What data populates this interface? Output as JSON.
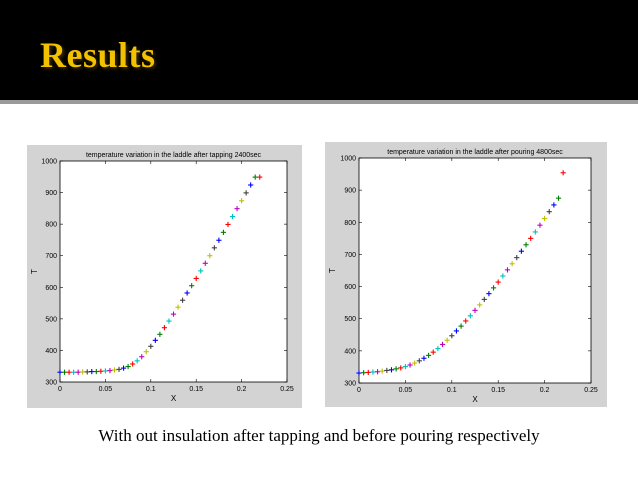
{
  "slide": {
    "title": "Results",
    "caption": "With out insulation after tapping and before pouring respectively"
  },
  "colors": {
    "header_bg": "#000000",
    "title_color": "#f2c200",
    "panel_bg": "#d3d3d3"
  },
  "chart_data": [
    {
      "type": "scatter",
      "title": "temperature variation in the laddle after tapping 2400sec",
      "xlabel": "X",
      "ylabel": "T",
      "xlim": [
        0,
        0.25
      ],
      "ylim": [
        300,
        1000
      ],
      "xticks": [
        "0",
        "0.05",
        "0.1",
        "0.15",
        "0.2",
        "0.25"
      ],
      "yticks": [
        "300",
        "400",
        "500",
        "600",
        "700",
        "800",
        "900",
        "1000"
      ],
      "marker": "+",
      "point_colors": [
        "#0000ff",
        "#008000",
        "#ff0000",
        "#00bfbf",
        "#bf00bf",
        "#bfbf00",
        "#404040"
      ],
      "x": [
        0,
        0.005,
        0.01,
        0.015,
        0.02,
        0.025,
        0.03,
        0.035,
        0.04,
        0.045,
        0.05,
        0.055,
        0.06,
        0.065,
        0.07,
        0.075,
        0.08,
        0.085,
        0.09,
        0.095,
        0.1,
        0.105,
        0.11,
        0.115,
        0.12,
        0.125,
        0.13,
        0.135,
        0.14,
        0.145,
        0.15,
        0.155,
        0.16,
        0.165,
        0.17,
        0.175,
        0.18,
        0.185,
        0.19,
        0.195,
        0.2,
        0.205,
        0.21,
        0.215,
        0.22
      ],
      "y": [
        331,
        331,
        331,
        331,
        331,
        332,
        332,
        333,
        333,
        334,
        335,
        336,
        338,
        340,
        344,
        349,
        357,
        367,
        380,
        396,
        413,
        432,
        451,
        472,
        493,
        515,
        537,
        559,
        582,
        605,
        628,
        652,
        676,
        700,
        725,
        749,
        774,
        799,
        824,
        849,
        874,
        899,
        924,
        949,
        949
      ]
    },
    {
      "type": "scatter",
      "title": "temperature variation in the laddle after pouring 4800sec",
      "xlabel": "X",
      "ylabel": "T",
      "xlim": [
        0,
        0.25
      ],
      "ylim": [
        300,
        1000
      ],
      "xticks": [
        "0",
        "0.05",
        "0.1",
        "0.15",
        "0.2",
        "0.25"
      ],
      "yticks": [
        "300",
        "400",
        "500",
        "600",
        "700",
        "800",
        "900",
        "1000"
      ],
      "marker": "+",
      "point_colors": [
        "#0000ff",
        "#008000",
        "#ff0000",
        "#00bfbf",
        "#bf00bf",
        "#bfbf00",
        "#404040"
      ],
      "x": [
        0,
        0.005,
        0.01,
        0.015,
        0.02,
        0.025,
        0.03,
        0.035,
        0.04,
        0.045,
        0.05,
        0.055,
        0.06,
        0.065,
        0.07,
        0.075,
        0.08,
        0.085,
        0.09,
        0.095,
        0.1,
        0.105,
        0.11,
        0.115,
        0.12,
        0.125,
        0.13,
        0.135,
        0.14,
        0.145,
        0.15,
        0.155,
        0.16,
        0.165,
        0.17,
        0.175,
        0.18,
        0.185,
        0.19,
        0.195,
        0.2,
        0.205,
        0.21,
        0.215,
        0.22
      ],
      "y": [
        331,
        332,
        333,
        334,
        335,
        337,
        339,
        341,
        344,
        347,
        351,
        356,
        362,
        369,
        377,
        386,
        396,
        407,
        420,
        433,
        447,
        462,
        477,
        493,
        509,
        526,
        543,
        560,
        578,
        596,
        614,
        633,
        652,
        671,
        690,
        710,
        730,
        750,
        770,
        791,
        812,
        833,
        854,
        875,
        954
      ]
    }
  ]
}
